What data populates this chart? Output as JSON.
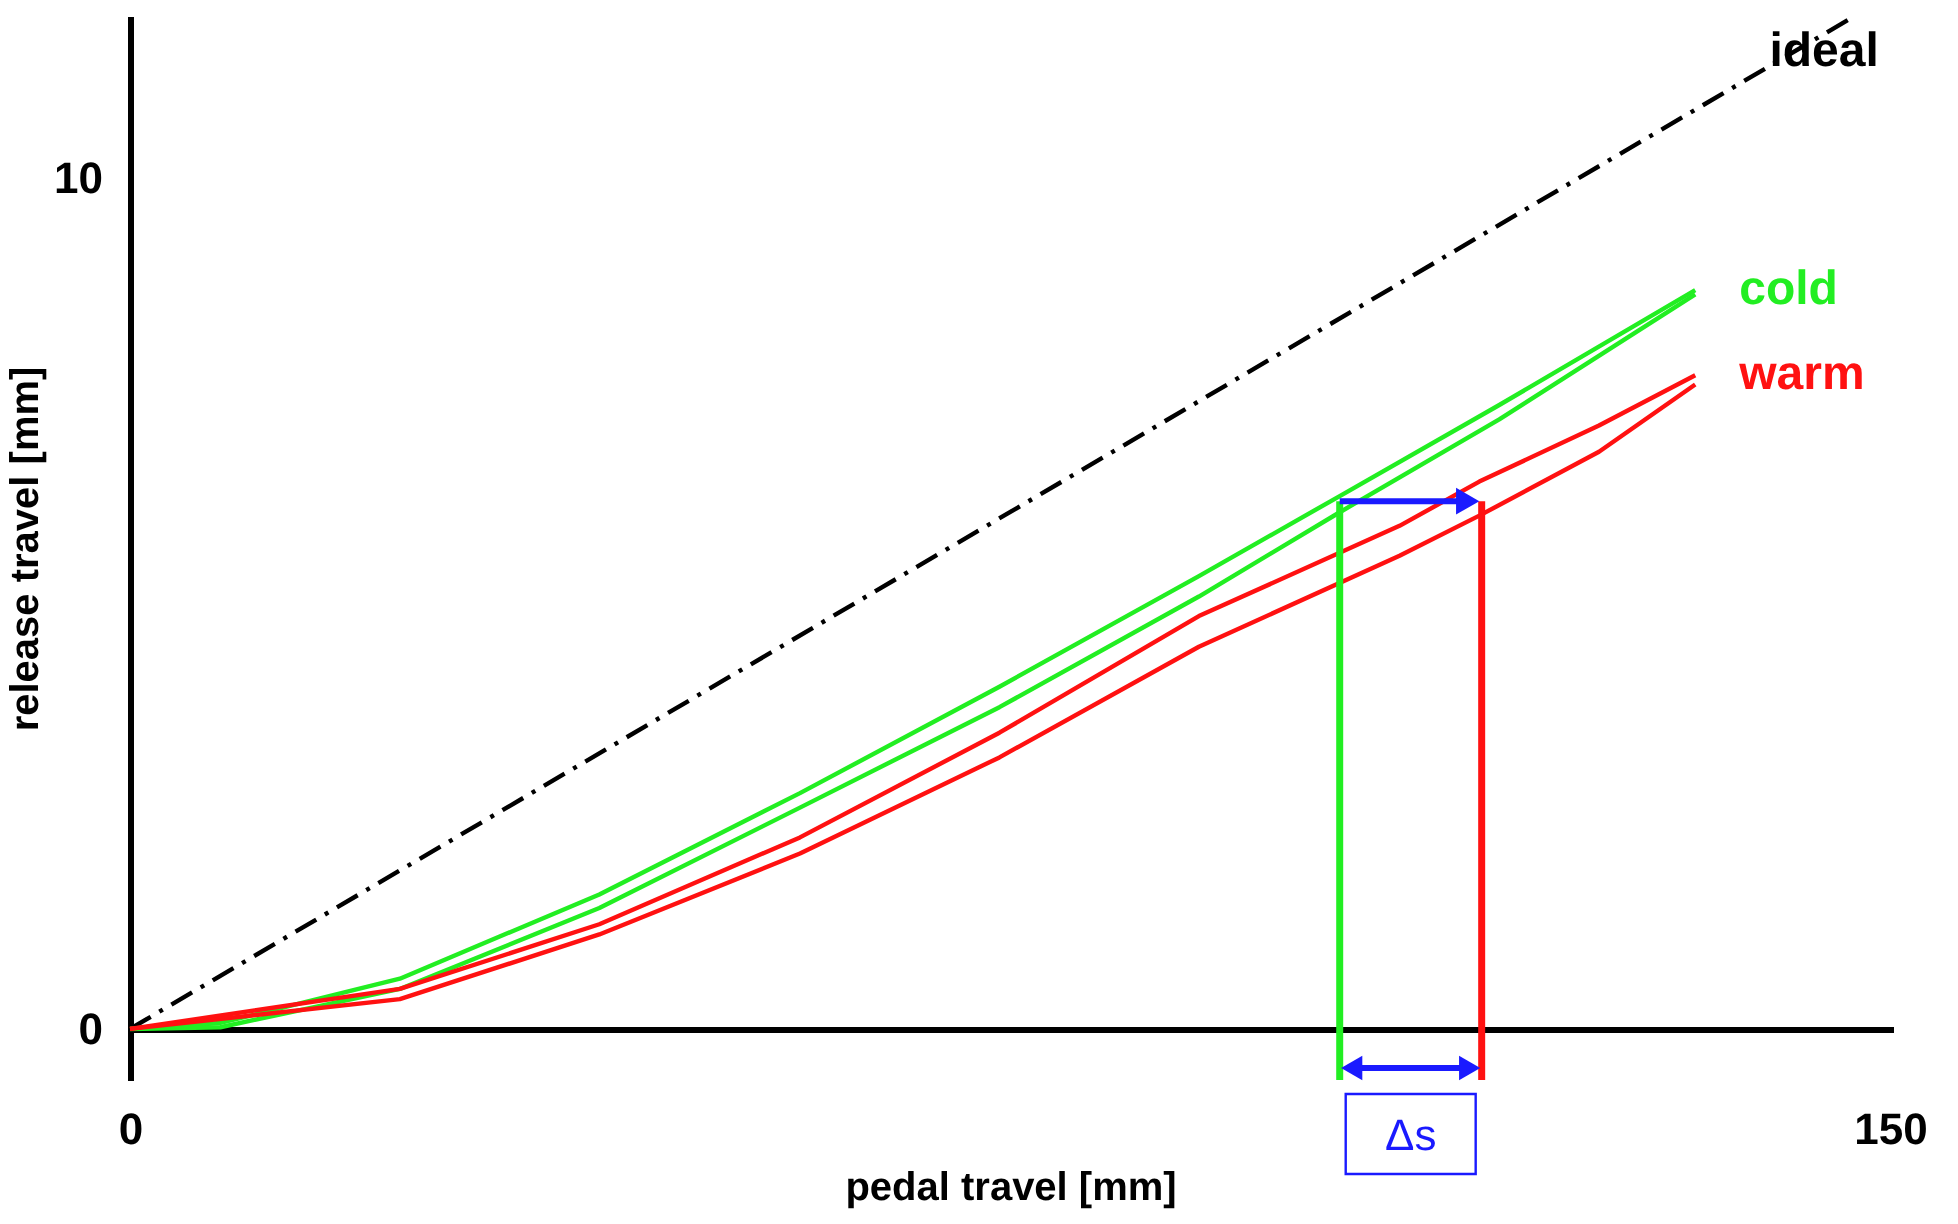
{
  "chart_data": {
    "type": "line",
    "xlabel": "pedal travel [mm]",
    "ylabel": "release travel [mm]",
    "xlim": [
      0,
      150
    ],
    "ylim": [
      -0.6,
      11.9
    ],
    "xticks": [
      0,
      150
    ],
    "yticks": [
      0,
      10
    ],
    "grid": false,
    "marker": "none",
    "series": [
      {
        "name": "ideal",
        "color": "#000000",
        "line_style": "dashed",
        "x": [
          0,
          147
        ],
        "values": [
          0,
          11.9
        ]
      },
      {
        "name": "cold",
        "color": "#22ee22",
        "x": [
          0,
          7.7,
          23,
          40,
          57.1,
          74.1,
          91.1,
          103.1,
          116.7,
          133.4
        ],
        "values": [
          0,
          0.07,
          0.59,
          1.58,
          2.77,
          4.02,
          5.32,
          6.26,
          7.33,
          8.68
        ]
      },
      {
        "color": "#22ee22",
        "x": [
          0,
          7.7,
          23,
          40,
          57.1,
          74.1,
          91.1,
          103.1,
          116.7,
          133.4
        ],
        "values": [
          0,
          0.02,
          0.47,
          1.42,
          2.6,
          3.78,
          5.08,
          6.07,
          7.16,
          8.63
        ]
      },
      {
        "name": "warm",
        "color": "#ff1111",
        "x": [
          0,
          23,
          40,
          57.1,
          74.1,
          91.1,
          108.2,
          115,
          125.2,
          133.4
        ],
        "values": [
          0,
          0.47,
          1.23,
          2.25,
          3.48,
          4.85,
          5.91,
          6.43,
          7.09,
          7.68
        ]
      },
      {
        "color": "#ff1111",
        "x": [
          0,
          23,
          40,
          57.1,
          74.1,
          91.1,
          108.2,
          115,
          125.2,
          133.4
        ],
        "values": [
          0,
          0.35,
          1.11,
          2.06,
          3.19,
          4.49,
          5.56,
          6.03,
          6.78,
          7.57
        ]
      },
      {
        "color": "#22ee22",
        "x": [
          103.1,
          103.1
        ],
        "values": [
          -0.6,
          6.2
        ]
      },
      {
        "color": "#ff1111",
        "x": [
          115.2,
          115.2
        ],
        "values": [
          -0.6,
          6.2
        ]
      }
    ],
    "annotations": [
      "Δs"
    ]
  }
}
